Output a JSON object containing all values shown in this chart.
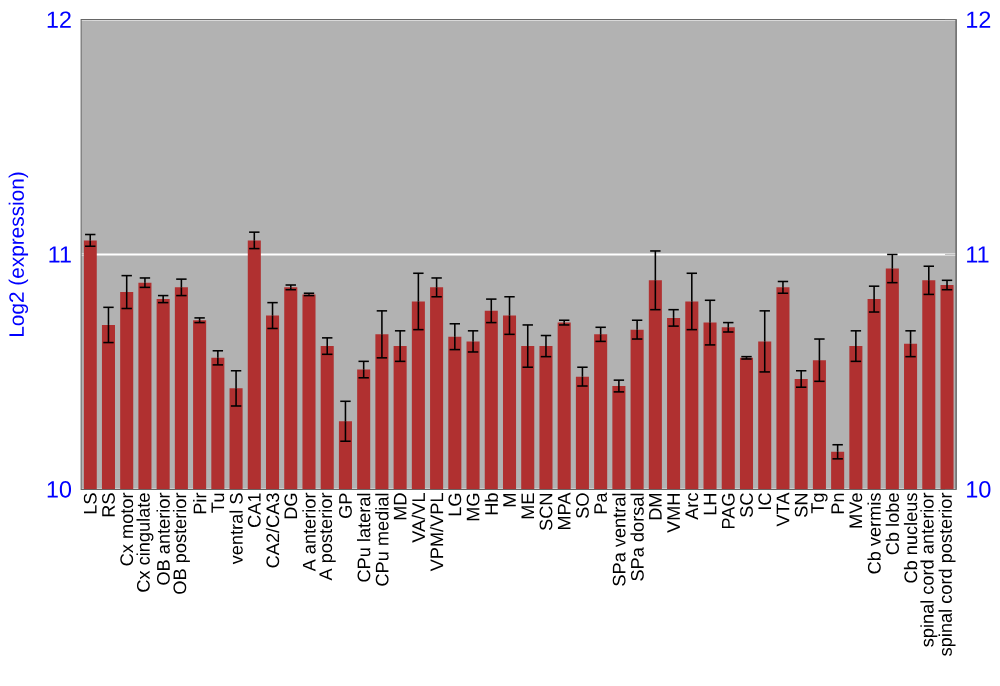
{
  "chart_data": {
    "type": "bar",
    "ylabel": "Log2 (expression)",
    "categories": [
      "LS",
      "RS",
      "Cx motor",
      "Cx cingulate",
      "OB anterior",
      "OB posterior",
      "Pir",
      "Tu",
      "ventral S",
      "CA1",
      "CA2/CA3",
      "DG",
      "A anterior",
      "A posterior",
      "GP",
      "CPu lateral",
      "CPu medial",
      "MD",
      "VA/VL",
      "VPM/VPL",
      "LG",
      "MG",
      "Hb",
      "M",
      "ME",
      "SCN",
      "MPA",
      "SO",
      "Pa",
      "SPa ventral",
      "SPa dorsal",
      "DM",
      "VMH",
      "Arc",
      "LH",
      "PAG",
      "SC",
      "IC",
      "VTA",
      "SN",
      "Tg",
      "Pn",
      "MVe",
      "Cb vermis",
      "Cb lobe",
      "Cb nucleus",
      "spinal cord anterior",
      "spinal cord posterior"
    ],
    "values": [
      11.06,
      10.7,
      10.84,
      10.88,
      10.81,
      10.86,
      10.72,
      10.56,
      10.43,
      11.06,
      10.74,
      10.86,
      10.83,
      10.61,
      10.29,
      10.51,
      10.66,
      10.61,
      10.8,
      10.86,
      10.65,
      10.63,
      10.76,
      10.74,
      10.61,
      10.61,
      10.71,
      10.48,
      10.66,
      10.44,
      10.68,
      10.89,
      10.73,
      10.8,
      10.71,
      10.69,
      10.56,
      10.63,
      10.86,
      10.47,
      10.55,
      10.16,
      10.61,
      10.81,
      10.94,
      10.62,
      10.89,
      10.87
    ],
    "errors": [
      0.025,
      0.075,
      0.07,
      0.02,
      0.015,
      0.035,
      0.01,
      0.03,
      0.075,
      0.035,
      0.055,
      0.01,
      0.005,
      0.035,
      0.085,
      0.035,
      0.1,
      0.065,
      0.12,
      0.04,
      0.055,
      0.045,
      0.05,
      0.08,
      0.09,
      0.045,
      0.01,
      0.04,
      0.03,
      0.025,
      0.04,
      0.125,
      0.035,
      0.12,
      0.095,
      0.02,
      0.005,
      0.13,
      0.025,
      0.035,
      0.09,
      0.03,
      0.065,
      0.055,
      0.06,
      0.055,
      0.06,
      0.02
    ],
    "color": "#b03030",
    "ylim": [
      10,
      12
    ],
    "yticks": [
      10,
      11,
      12
    ],
    "y2lim": [
      10,
      12
    ],
    "y2ticks": [
      10,
      11,
      12
    ],
    "grid": "y"
  }
}
